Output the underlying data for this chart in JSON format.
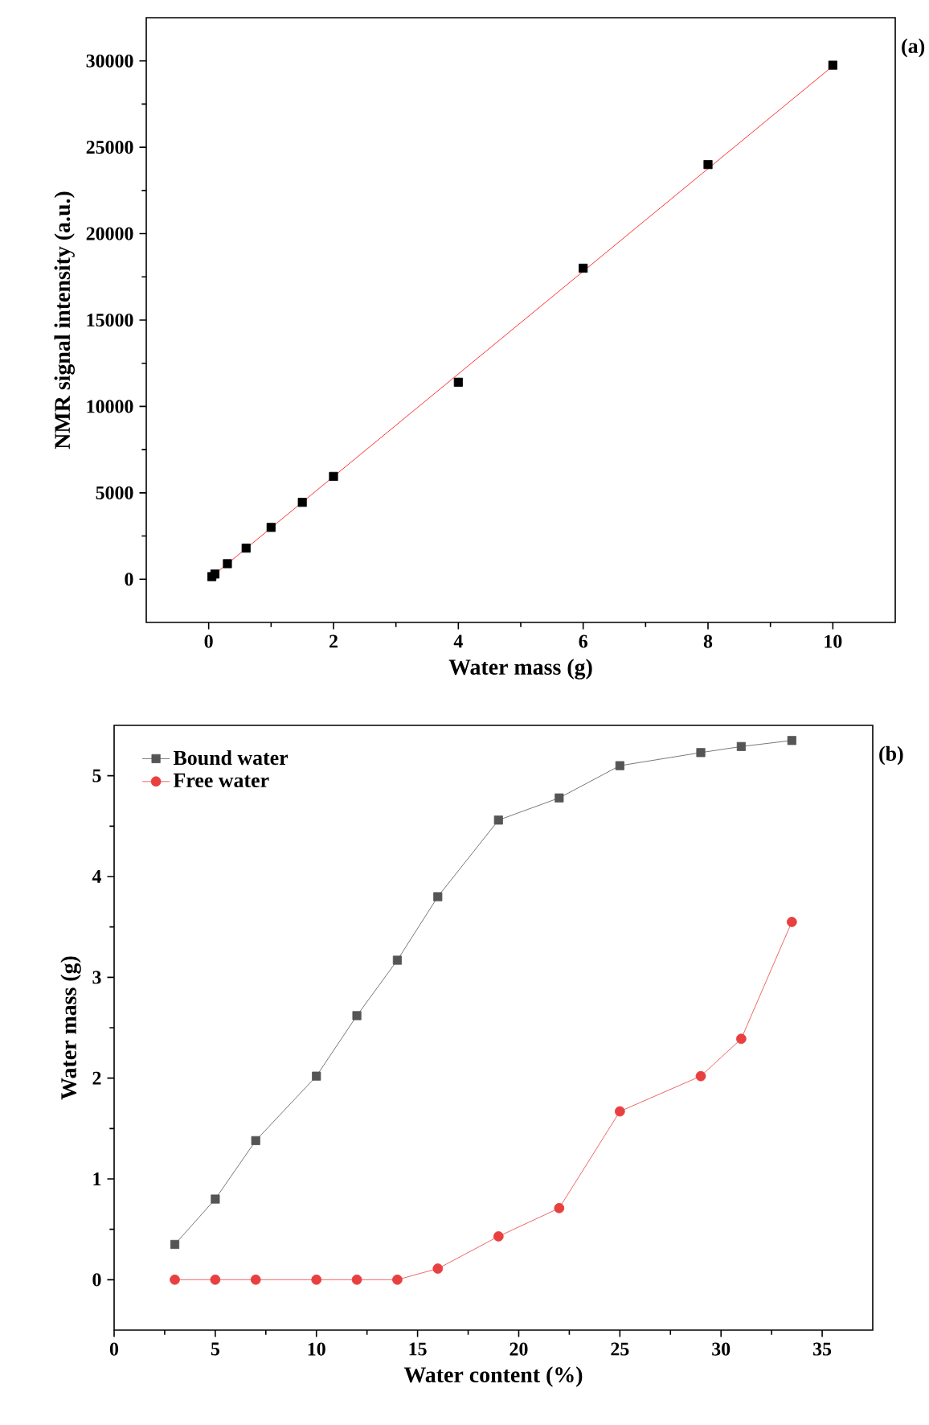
{
  "chart_data": [
    {
      "type": "scatter",
      "xlabel": "Water mass (g)",
      "ylabel": "NMR signal intensity (a.u.)",
      "annotations": [
        "(a)"
      ],
      "xlim": [
        -1,
        11
      ],
      "ylim": [
        -2500,
        32500
      ],
      "xticks": [
        0,
        2,
        4,
        6,
        8,
        10
      ],
      "yticks": [
        0,
        5000,
        10000,
        15000,
        20000,
        25000,
        30000
      ],
      "legend": false,
      "series": [
        {
          "type": "scatter",
          "marker": "square",
          "color": "#000000",
          "x": [
            0.05,
            0.1,
            0.3,
            0.6,
            1,
            1.5,
            2,
            4,
            6,
            8,
            10
          ],
          "values": [
            150,
            300,
            900,
            1800,
            3000,
            4450,
            5950,
            11400,
            18000,
            24000,
            29750
          ]
        },
        {
          "type": "line",
          "marker": "none",
          "color": "#ff0000",
          "x": [
            0.05,
            10
          ],
          "values": [
            150,
            29700
          ]
        }
      ]
    },
    {
      "type": "line",
      "xlabel": "Water content (%)",
      "ylabel": "Water mass (g)",
      "annotations": [
        "(b)"
      ],
      "xlim": [
        0,
        37.5
      ],
      "ylim": [
        -0.5,
        5.5
      ],
      "xticks": [
        0,
        5,
        10,
        15,
        20,
        25,
        30,
        35
      ],
      "yticks": [
        0,
        1,
        2,
        3,
        4,
        5
      ],
      "legend": "top left",
      "series": [
        {
          "name": "Bound water",
          "marker": "square",
          "color": "#555555",
          "x": [
            3,
            5,
            7,
            10,
            12,
            14,
            16,
            19,
            22,
            25,
            29,
            31,
            33.5
          ],
          "values": [
            0.35,
            0.8,
            1.38,
            2.02,
            2.62,
            3.17,
            3.8,
            4.56,
            4.78,
            5.1,
            5.23,
            5.29,
            5.35
          ]
        },
        {
          "name": "Free water",
          "marker": "circle",
          "color": "#e84040",
          "x": [
            3,
            5,
            7,
            10,
            12,
            14,
            16,
            19,
            22,
            25,
            29,
            31,
            33.5
          ],
          "values": [
            0,
            0,
            0,
            0,
            0,
            0,
            0.11,
            0.43,
            0.71,
            1.67,
            2.02,
            2.39,
            3.55
          ]
        }
      ]
    }
  ]
}
